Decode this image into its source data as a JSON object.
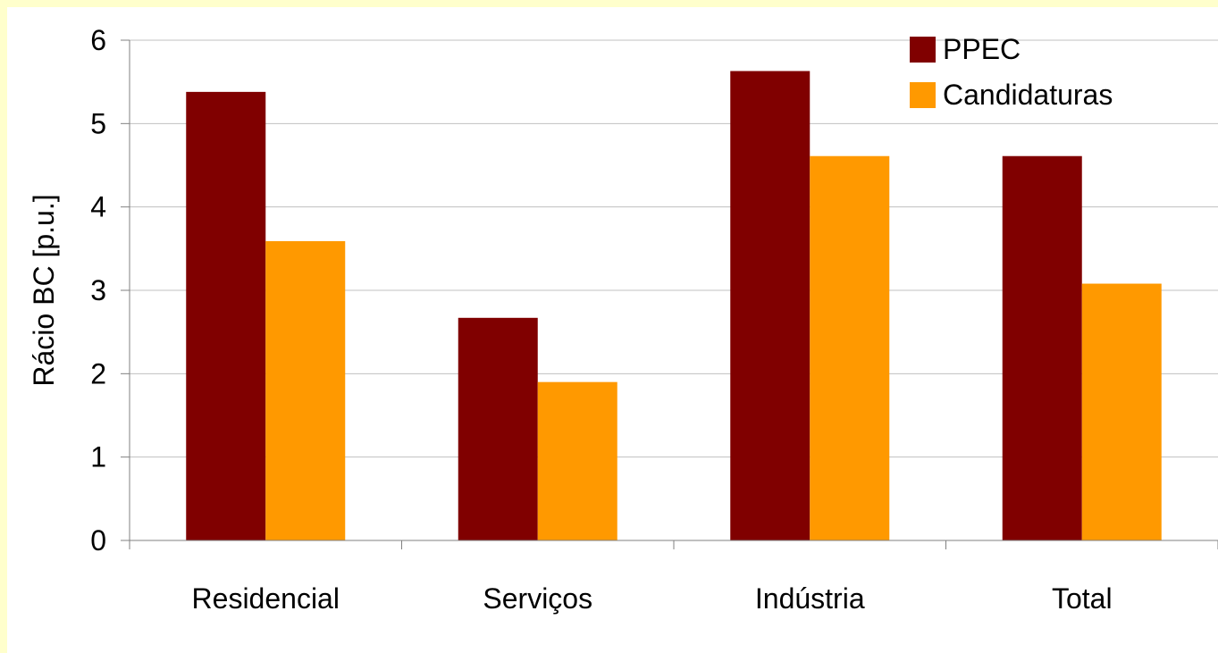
{
  "chart_data": {
    "type": "bar",
    "categories": [
      "Residencial",
      "Serviços",
      "Indústria",
      "Total"
    ],
    "series": [
      {
        "name": "PPEC",
        "values": [
          5.38,
          2.67,
          5.63,
          4.61
        ],
        "color": "#800000"
      },
      {
        "name": "Candidaturas",
        "values": [
          3.59,
          1.9,
          4.61,
          3.08
        ],
        "color": "#FF9900"
      }
    ],
    "ylabel": "Rácio BC [p.u.]",
    "xlabel": "",
    "yticks": [
      "0",
      "1",
      "2",
      "3",
      "4",
      "5",
      "6"
    ],
    "ylim": [
      0,
      6
    ],
    "grid": true,
    "legend_position": "top-right"
  },
  "colors": {
    "page_border": "#FFFFCC",
    "plot_background": "#FFFFFF",
    "gridline": "#C0C0C0",
    "axis": "#808080"
  }
}
